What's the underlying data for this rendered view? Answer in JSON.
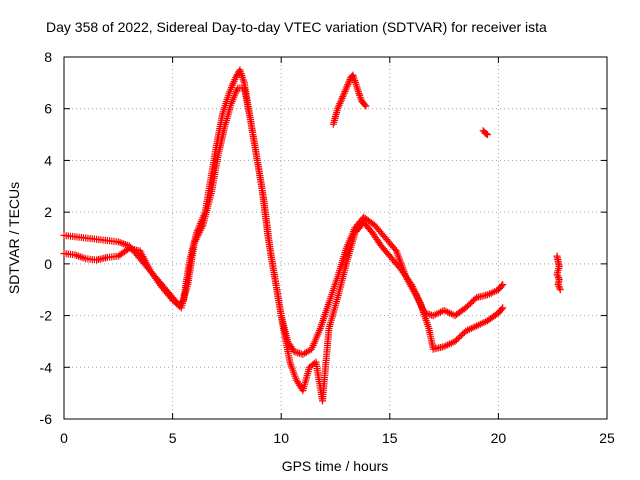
{
  "chart_data": {
    "type": "scatter",
    "title": "Day 358 of 2022, Sidereal Day-to-day VTEC variation (SDTVAR) for receiver ista",
    "xlabel": "GPS time / hours",
    "ylabel": "SDTVAR / TECUs",
    "xlim": [
      0,
      25
    ],
    "ylim": [
      -6,
      8
    ],
    "xticks": [
      0,
      5,
      10,
      15,
      20,
      25
    ],
    "yticks": [
      -6,
      -4,
      -2,
      0,
      2,
      4,
      6,
      8
    ],
    "xtick_labels": [
      "0",
      "5",
      "10",
      "15",
      "20",
      "25"
    ],
    "ytick_labels": [
      "-6",
      "-4",
      "-2",
      "0",
      "2",
      "4",
      "6",
      "8"
    ],
    "grid": true,
    "marker": "+",
    "color": "#ff0000",
    "series": [
      {
        "name": "track-a",
        "points": [
          [
            0.0,
            1.1
          ],
          [
            0.5,
            1.05
          ],
          [
            1.0,
            1.0
          ],
          [
            1.5,
            0.95
          ],
          [
            2.0,
            0.9
          ],
          [
            2.5,
            0.85
          ],
          [
            3.0,
            0.7
          ],
          [
            3.5,
            0.2
          ],
          [
            4.0,
            -0.3
          ],
          [
            4.5,
            -0.8
          ],
          [
            5.0,
            -1.3
          ],
          [
            5.3,
            -1.6
          ],
          [
            5.5,
            -1.4
          ],
          [
            5.8,
            0.2
          ],
          [
            6.1,
            1.2
          ],
          [
            6.5,
            2.0
          ],
          [
            6.8,
            3.5
          ],
          [
            7.0,
            4.5
          ],
          [
            7.3,
            5.8
          ],
          [
            7.6,
            6.6
          ],
          [
            7.9,
            7.2
          ],
          [
            8.1,
            7.5
          ],
          [
            8.3,
            7.0
          ],
          [
            8.5,
            6.0
          ],
          [
            8.8,
            4.5
          ],
          [
            9.1,
            3.0
          ],
          [
            9.4,
            1.0
          ],
          [
            9.7,
            -0.5
          ],
          [
            10.0,
            -2.0
          ],
          [
            10.3,
            -3.0
          ],
          [
            10.6,
            -3.4
          ],
          [
            11.0,
            -3.5
          ],
          [
            11.4,
            -3.3
          ],
          [
            11.8,
            -2.5
          ],
          [
            12.2,
            -1.5
          ],
          [
            12.6,
            -0.5
          ],
          [
            13.0,
            0.6
          ],
          [
            13.4,
            1.4
          ],
          [
            13.8,
            1.8
          ],
          [
            14.3,
            1.5
          ],
          [
            14.8,
            1.0
          ],
          [
            15.3,
            0.5
          ],
          [
            15.8,
            -0.6
          ],
          [
            16.2,
            -1.2
          ],
          [
            16.6,
            -1.9
          ],
          [
            17.0,
            -2.0
          ],
          [
            17.5,
            -1.8
          ],
          [
            18.0,
            -2.0
          ],
          [
            18.5,
            -1.7
          ],
          [
            19.0,
            -1.3
          ],
          [
            19.5,
            -1.2
          ],
          [
            20.0,
            -1.0
          ],
          [
            20.2,
            -0.8
          ]
        ]
      },
      {
        "name": "track-b",
        "points": [
          [
            0.0,
            0.4
          ],
          [
            0.5,
            0.35
          ],
          [
            1.0,
            0.2
          ],
          [
            1.5,
            0.15
          ],
          [
            2.0,
            0.25
          ],
          [
            2.5,
            0.3
          ],
          [
            3.0,
            0.6
          ],
          [
            3.5,
            0.5
          ],
          [
            4.0,
            -0.3
          ],
          [
            4.5,
            -0.9
          ],
          [
            5.0,
            -1.4
          ],
          [
            5.4,
            -1.7
          ],
          [
            5.7,
            -0.8
          ],
          [
            6.0,
            0.8
          ],
          [
            6.4,
            1.5
          ],
          [
            6.8,
            2.8
          ],
          [
            7.1,
            4.2
          ],
          [
            7.4,
            5.3
          ],
          [
            7.7,
            6.2
          ],
          [
            8.0,
            6.8
          ],
          [
            8.3,
            6.8
          ],
          [
            8.6,
            5.5
          ],
          [
            8.9,
            4.0
          ],
          [
            9.2,
            2.5
          ],
          [
            9.5,
            0.5
          ],
          [
            9.8,
            -1.0
          ],
          [
            10.1,
            -2.5
          ],
          [
            10.4,
            -3.8
          ],
          [
            10.7,
            -4.5
          ],
          [
            11.0,
            -4.9
          ],
          [
            11.3,
            -4.0
          ],
          [
            11.6,
            -3.8
          ],
          [
            11.9,
            -5.3
          ],
          [
            12.2,
            -2.5
          ],
          [
            12.6,
            -1.3
          ],
          [
            13.0,
            0.0
          ],
          [
            13.4,
            1.2
          ],
          [
            13.8,
            1.6
          ],
          [
            14.2,
            1.2
          ],
          [
            14.6,
            0.7
          ],
          [
            15.0,
            0.3
          ],
          [
            15.5,
            -0.2
          ],
          [
            16.0,
            -0.8
          ],
          [
            16.4,
            -1.5
          ],
          [
            16.8,
            -2.5
          ],
          [
            17.0,
            -3.3
          ],
          [
            17.5,
            -3.2
          ],
          [
            18.0,
            -3.0
          ],
          [
            18.5,
            -2.6
          ],
          [
            19.0,
            -2.4
          ],
          [
            19.5,
            -2.2
          ],
          [
            20.0,
            -1.9
          ],
          [
            20.2,
            -1.7
          ]
        ]
      },
      {
        "name": "segment-peak-13h",
        "points": [
          [
            12.4,
            5.4
          ],
          [
            12.6,
            6.0
          ],
          [
            12.8,
            6.4
          ],
          [
            13.0,
            6.8
          ],
          [
            13.2,
            7.2
          ],
          [
            13.3,
            7.3
          ],
          [
            13.5,
            6.8
          ],
          [
            13.7,
            6.3
          ],
          [
            13.9,
            6.1
          ]
        ]
      },
      {
        "name": "segment-19h",
        "points": [
          [
            19.3,
            5.15
          ],
          [
            19.4,
            5.05
          ],
          [
            19.5,
            5.0
          ]
        ]
      },
      {
        "name": "segment-23h",
        "points": [
          [
            22.7,
            0.3
          ],
          [
            22.75,
            0.1
          ],
          [
            22.8,
            -0.1
          ],
          [
            22.7,
            -0.4
          ],
          [
            22.8,
            -0.6
          ],
          [
            22.75,
            -0.8
          ],
          [
            22.85,
            -1.0
          ]
        ]
      }
    ]
  }
}
